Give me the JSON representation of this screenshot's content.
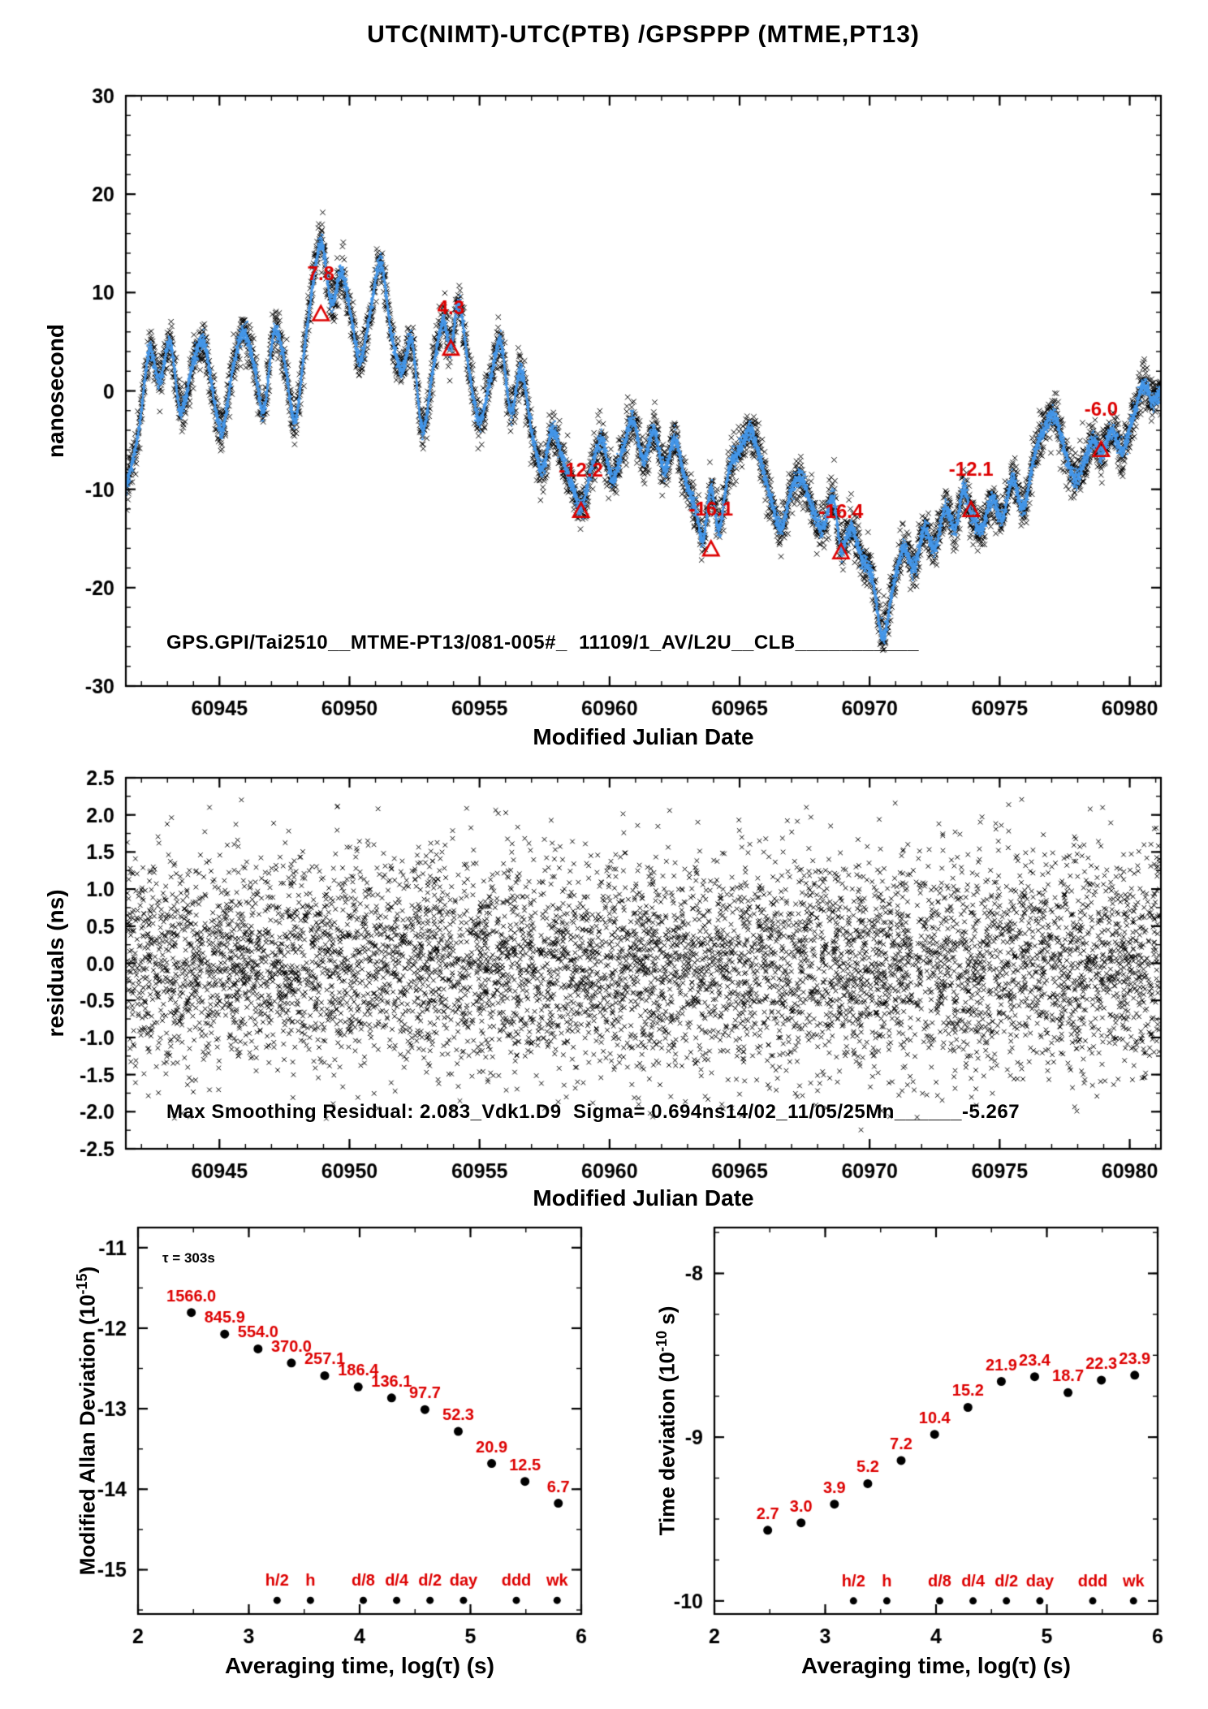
{
  "title": "UTC(NIMT)-UTC(PTB)  /GPSPPP  (MTME,PT13)",
  "colors": {
    "red": "#dd0000",
    "blue": "#4496e8",
    "black": "#000000",
    "background": "#ffffff"
  },
  "chart_data": [
    {
      "id": "phase-comparison",
      "type": "line",
      "xlabel": "Modified Julian Date",
      "ylabel": "nanosecond",
      "xlim": [
        60941.4,
        60981.2
      ],
      "ylim": [
        -30,
        30
      ],
      "x_ticks": [
        60945,
        60950,
        60955,
        60960,
        60965,
        60970,
        60975,
        60980
      ],
      "x_minor_step": 1,
      "y_ticks": [
        -30,
        -20,
        -10,
        0,
        10,
        20,
        30
      ],
      "y_minor_step": 2,
      "inplot_label": "GPS.GPI/Tai2510__MTME-PT13/081-005#_  11109/1_AV/L2U__CLB___________",
      "five_day_averages": [
        {
          "x": 60948.9,
          "y": 7.8,
          "label": "7.8"
        },
        {
          "x": 60953.9,
          "y": 4.3,
          "label": "4.3"
        },
        {
          "x": 60958.9,
          "y": -12.2,
          "label": "-12.2"
        },
        {
          "x": 60963.9,
          "y": -16.1,
          "label": "-16.1"
        },
        {
          "x": 60968.9,
          "y": -16.4,
          "label": "-16.4"
        },
        {
          "x": 60973.9,
          "y": -12.1,
          "label": "-12.1"
        },
        {
          "x": 60978.9,
          "y": -6.0,
          "label": "-6.0"
        }
      ],
      "trend_anchors": {
        "x": [
          60941.4,
          60941.9,
          60942.3,
          60942.7,
          60943.1,
          60943.5,
          60944.0,
          60944.4,
          60944.8,
          60945.1,
          60945.5,
          60945.9,
          60946.3,
          60946.7,
          60947.1,
          60947.5,
          60947.9,
          60948.3,
          60948.9,
          60949.3,
          60949.7,
          60950.1,
          60950.4,
          60950.8,
          60951.2,
          60951.6,
          60952.0,
          60952.4,
          60952.8,
          60953.2,
          60953.6,
          60953.9,
          60954.2,
          60954.6,
          60955.0,
          60955.4,
          60955.8,
          60956.2,
          60956.6,
          60957.0,
          60957.4,
          60957.8,
          60958.2,
          60958.6,
          60958.9,
          60959.3,
          60959.7,
          60960.1,
          60960.5,
          60960.9,
          60961.3,
          60961.7,
          60962.1,
          60962.5,
          60962.9,
          60963.3,
          60963.6,
          60963.9,
          60964.2,
          60964.6,
          60965.0,
          60965.4,
          60965.8,
          60966.2,
          60966.6,
          60967.0,
          60967.4,
          60967.8,
          60968.2,
          60968.6,
          60968.9,
          60969.3,
          60969.7,
          60970.1,
          60970.5,
          60970.9,
          60971.3,
          60971.7,
          60972.1,
          60972.5,
          60972.9,
          60973.3,
          60973.6,
          60973.9,
          60974.3,
          60974.7,
          60975.1,
          60975.5,
          60975.9,
          60976.3,
          60976.7,
          60977.1,
          60977.5,
          60977.9,
          60978.3,
          60978.6,
          60978.9,
          60979.3,
          60979.7,
          60980.1,
          60980.5,
          60980.9,
          60981.2
        ],
        "y": [
          -10,
          -4,
          4,
          1,
          5,
          -2,
          3,
          5,
          -1,
          -4,
          2,
          6,
          3,
          -2,
          6,
          3,
          -3,
          5,
          15,
          9,
          12,
          7,
          3,
          8,
          13,
          6,
          2,
          5,
          -4,
          2,
          7,
          4.5,
          9,
          2,
          -3,
          1,
          5,
          -2,
          2,
          -4,
          -8,
          -4,
          -7,
          -10,
          -12,
          -8,
          -5,
          -9,
          -6,
          -3,
          -7,
          -4,
          -8,
          -5,
          -9,
          -12,
          -15,
          -10,
          -14,
          -8,
          -6,
          -4,
          -7,
          -11,
          -14,
          -10,
          -9,
          -12,
          -14,
          -11,
          -16,
          -14,
          -17,
          -19,
          -25,
          -20,
          -16,
          -18,
          -14,
          -16,
          -12,
          -14,
          -10,
          -12.5,
          -14,
          -11,
          -13,
          -9,
          -12,
          -7,
          -4,
          -2.5,
          -6,
          -9,
          -7,
          -5,
          -6.5,
          -4,
          -6,
          -3,
          0.5,
          -1,
          0
        ]
      },
      "scatter_noise_sd": 1.15,
      "smooth_band_sd": 0.45
    },
    {
      "id": "residuals",
      "type": "scatter",
      "xlabel": "Modified Julian Date",
      "ylabel": "residuals (ns)",
      "xlim": [
        60941.4,
        60981.2
      ],
      "ylim": [
        -2.5,
        2.5
      ],
      "x_ticks": [
        60945,
        60950,
        60955,
        60960,
        60965,
        60970,
        60975,
        60980
      ],
      "x_minor_step": 1,
      "y_ticks": [
        -2.5,
        -2.0,
        -1.5,
        -1.0,
        -0.5,
        0.0,
        0.5,
        1.0,
        1.5,
        2.0,
        2.5
      ],
      "y_tick_labels": [
        "-2.5",
        "-2.0",
        "-1.5",
        "-1.0",
        "-0.5",
        "0.0",
        "0.5",
        "1.0",
        "1.5",
        "2.0",
        "2.5"
      ],
      "y_minor_step": 0.25,
      "inplot_label": "Max Smoothing Residual: 2.083_Vdk1.D9  Sigma= 0.694ns14/02_11/05/25Mn______-5.267",
      "n_points": 7200,
      "sigma": 0.72,
      "clip": 2.3
    },
    {
      "id": "modified-allan-deviation",
      "type": "scatter",
      "xlabel": "Averaging time, log(τ) (s)",
      "ylabel_main": "Modified Allan Deviation (10",
      "ylabel_sup": "-15",
      "ylabel_end": ")",
      "annotation": "τ = 303s",
      "xlim": [
        2,
        6
      ],
      "ylim": [
        -15.55,
        -10.75
      ],
      "x_ticks": [
        2,
        3,
        4,
        5,
        6
      ],
      "x_minor_step": 0.5,
      "y_ticks": [
        -15,
        -14,
        -13,
        -12,
        -11
      ],
      "y_minor_step": 0.5,
      "unit_exponent": -15,
      "log_tau": [
        2.481,
        2.782,
        3.083,
        3.384,
        3.685,
        3.987,
        4.288,
        4.589,
        4.89,
        5.191,
        5.492,
        5.793
      ],
      "values": [
        1566.0,
        845.9,
        554.0,
        370.0,
        257.1,
        186.4,
        136.1,
        97.7,
        52.3,
        20.9,
        12.5,
        6.7
      ],
      "value_labels": [
        "1566.0",
        "845.9",
        "554.0",
        "370.0",
        "257.1",
        "186.4",
        "136.1",
        "97.7",
        "52.3",
        "20.9",
        "12.5",
        "6.7"
      ],
      "time_markers": [
        {
          "label": "h/2",
          "log_tau": 3.255
        },
        {
          "label": "h",
          "log_tau": 3.556
        },
        {
          "label": "d/8",
          "log_tau": 4.033
        },
        {
          "label": "d/4",
          "log_tau": 4.334
        },
        {
          "label": "d/2",
          "log_tau": 4.635
        },
        {
          "label": "day",
          "log_tau": 4.937
        },
        {
          "label": "ddd",
          "log_tau": 5.414
        },
        {
          "label": "wk",
          "log_tau": 5.782
        }
      ],
      "marker_dot_y": -15.38
    },
    {
      "id": "time-deviation",
      "type": "scatter",
      "xlabel": "Averaging time, log(τ) (s)",
      "ylabel_main": "Time deviation (10",
      "ylabel_sup": "-10",
      "ylabel_end": " s)",
      "xlim": [
        2,
        6
      ],
      "ylim": [
        -10.08,
        -7.72
      ],
      "x_ticks": [
        2,
        3,
        4,
        5,
        6
      ],
      "x_minor_step": 0.5,
      "y_ticks": [
        -10,
        -9,
        -8
      ],
      "y_minor_step": 0.25,
      "unit_exponent": -10,
      "log_tau": [
        2.481,
        2.782,
        3.083,
        3.384,
        3.685,
        3.987,
        4.288,
        4.589,
        4.89,
        5.191,
        5.492,
        5.793
      ],
      "values": [
        2.7,
        3.0,
        3.9,
        5.2,
        7.2,
        10.4,
        15.2,
        21.9,
        23.4,
        18.7,
        22.3,
        23.9
      ],
      "value_labels": [
        "2.7",
        "3.0",
        "3.9",
        "5.2",
        "7.2",
        "10.4",
        "15.2",
        "21.9",
        "23.4",
        "18.7",
        "22.3",
        "23.9"
      ],
      "time_markers": [
        {
          "label": "h/2",
          "log_tau": 3.255
        },
        {
          "label": "h",
          "log_tau": 3.556
        },
        {
          "label": "d/8",
          "log_tau": 4.033
        },
        {
          "label": "d/4",
          "log_tau": 4.334
        },
        {
          "label": "d/2",
          "log_tau": 4.635
        },
        {
          "label": "day",
          "log_tau": 4.937
        },
        {
          "label": "ddd",
          "log_tau": 5.414
        },
        {
          "label": "wk",
          "log_tau": 5.782
        }
      ],
      "marker_dot_y": -10.0
    }
  ]
}
